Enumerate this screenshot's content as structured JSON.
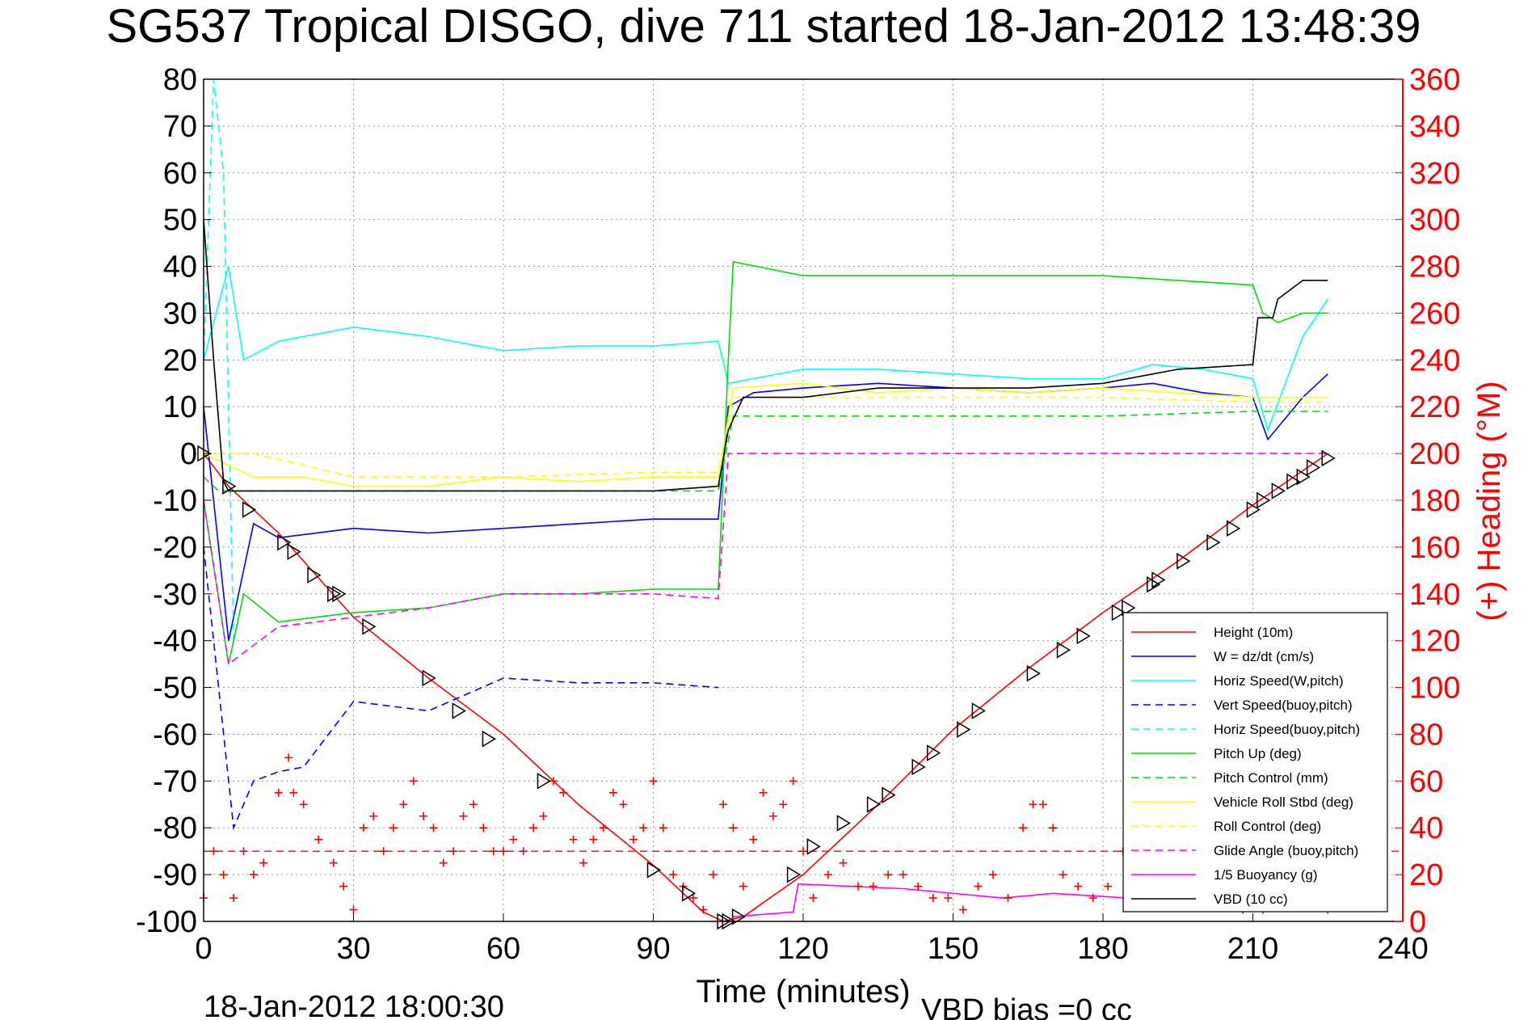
{
  "chart_data": {
    "type": "line",
    "title": "SG537 Tropical DISGO, dive 711 started 18-Jan-2012 13:48:39",
    "xlabel": "Time (minutes)",
    "ylabel": "",
    "y2label": "(+) Heading (°M)",
    "footer_left": "18-Jan-2012 18:00:30",
    "footer_right": "VBD bias =0 cc",
    "xlim": [
      0,
      240
    ],
    "ylim": [
      -100,
      80
    ],
    "y2lim": [
      0,
      360
    ],
    "xticks": [
      0,
      30,
      60,
      90,
      120,
      150,
      180,
      210,
      240
    ],
    "yticks": [
      80,
      70,
      60,
      50,
      40,
      30,
      20,
      10,
      0,
      -10,
      -20,
      -30,
      -40,
      -50,
      -60,
      -70,
      -80,
      -90,
      -100
    ],
    "y2ticks": [
      360,
      340,
      320,
      300,
      280,
      260,
      240,
      220,
      200,
      180,
      160,
      140,
      120,
      100,
      80,
      60,
      40,
      20,
      0
    ],
    "grid": true,
    "legend_position": "lower-right",
    "colors": {
      "height": "#ff0000",
      "w": "#0000ff",
      "horiz_speed": "#00ffff",
      "vert_speed_buoy": "#0000ff",
      "horiz_speed_buoy": "#00ffff",
      "pitch_up": "#00dd00",
      "pitch_control": "#00dd00",
      "roll": "#ffff00",
      "roll_control": "#ffff00",
      "glide_angle": "#ff00ff",
      "buoyancy": "#ff00ff",
      "vbd": "#000000",
      "heading": "#ff0000",
      "right_axis": "#ff0000"
    },
    "series": [
      {
        "name": "Height (10m)",
        "key": "height",
        "style": "solid",
        "x": [
          0,
          5,
          15,
          30,
          45,
          60,
          75,
          90,
          100,
          104,
          108,
          120,
          135,
          150,
          165,
          180,
          195,
          210,
          225
        ],
        "y": [
          0,
          -7,
          -17,
          -35,
          -48,
          -60,
          -75,
          -88,
          -98,
          -100,
          -99,
          -90,
          -75,
          -59,
          -46,
          -34,
          -23,
          -11,
          0
        ]
      },
      {
        "name": "W = dz/dt (cm/s)",
        "key": "w",
        "style": "solid",
        "x": [
          0,
          5,
          10,
          15,
          30,
          45,
          60,
          75,
          90,
          103,
          105,
          110,
          120,
          135,
          150,
          165,
          180,
          190,
          200,
          210,
          213,
          220,
          225
        ],
        "y": [
          10,
          -40,
          -15,
          -18,
          -16,
          -17,
          -16,
          -15,
          -14,
          -14,
          10,
          13,
          14,
          15,
          14,
          13,
          14,
          15,
          13,
          12,
          3,
          12,
          17
        ]
      },
      {
        "name": "Horiz Speed(W,pitch)",
        "key": "horiz_speed",
        "style": "solid",
        "x": [
          0,
          5,
          8,
          15,
          30,
          45,
          60,
          75,
          90,
          103,
          105,
          110,
          120,
          135,
          150,
          165,
          180,
          190,
          200,
          210,
          213,
          220,
          225
        ],
        "y": [
          20,
          40,
          20,
          24,
          27,
          25,
          22,
          23,
          23,
          24,
          15,
          16,
          18,
          18,
          17,
          16,
          16,
          19,
          18,
          16,
          5,
          25,
          33
        ]
      },
      {
        "name": "Vert Speed(buoy,pitch)",
        "key": "vert_speed_buoy",
        "style": "dashed",
        "x": [
          0,
          6,
          10,
          15,
          20,
          25,
          30,
          45,
          60,
          75,
          90,
          103
        ],
        "y": [
          -20,
          -80,
          -70,
          -68,
          -67,
          -60,
          -53,
          -55,
          -48,
          -49,
          -49,
          -50
        ]
      },
      {
        "name": "Horiz Speed(buoy,pitch)",
        "key": "horiz_speed_buoy",
        "style": "dashed",
        "x": [
          0,
          2,
          4,
          6
        ],
        "y": [
          20,
          80,
          60,
          -40
        ]
      },
      {
        "name": "Pitch Up (deg)",
        "key": "pitch_up",
        "style": "solid",
        "x": [
          0,
          5,
          8,
          15,
          30,
          45,
          60,
          75,
          90,
          103,
          105,
          106,
          120,
          135,
          150,
          165,
          180,
          195,
          210,
          212,
          215,
          220,
          225
        ],
        "y": [
          -10,
          -45,
          -30,
          -36,
          -34,
          -33,
          -30,
          -30,
          -29,
          -29,
          20,
          41,
          38,
          38,
          38,
          38,
          38,
          37,
          36,
          30,
          28,
          30,
          30
        ]
      },
      {
        "name": "Pitch Control (mm)",
        "key": "pitch_control",
        "style": "dashed",
        "x": [
          0,
          3,
          30,
          60,
          90,
          103,
          106,
          120,
          150,
          180,
          210,
          225
        ],
        "y": [
          -5,
          -8,
          -8,
          -8,
          -8,
          -8,
          8,
          8,
          8,
          8,
          9,
          9
        ]
      },
      {
        "name": "Vehicle Roll Stbd (deg)",
        "key": "roll",
        "style": "solid",
        "x": [
          0,
          10,
          20,
          30,
          45,
          60,
          75,
          90,
          103,
          106,
          120,
          135,
          150,
          165,
          180,
          195,
          210,
          225
        ],
        "y": [
          0,
          -5,
          -5,
          -7,
          -7,
          -5,
          -6,
          -5,
          -5,
          14,
          15,
          13,
          14,
          13,
          14,
          13,
          12,
          12
        ]
      },
      {
        "name": "Roll Control (deg)",
        "key": "roll_control",
        "style": "dashed",
        "x": [
          0,
          10,
          30,
          60,
          90,
          103,
          106,
          120,
          150,
          180,
          210,
          225
        ],
        "y": [
          0,
          0,
          -5,
          -5,
          -4,
          -4,
          12,
          12,
          12,
          12,
          11,
          11
        ]
      },
      {
        "name": "Glide Angle (buoy,pitch)",
        "key": "glide_angle",
        "style": "dashed",
        "x": [
          0,
          5,
          15,
          30,
          45,
          60,
          75,
          90,
          103,
          105,
          120,
          150,
          180,
          210,
          225
        ],
        "y": [
          -10,
          -45,
          -37,
          -35,
          -33,
          -30,
          -30,
          -30,
          -31,
          0,
          0,
          0,
          0,
          0,
          0
        ]
      },
      {
        "name": "1/5 Buoyancy (g)",
        "key": "buoyancy",
        "style": "solid",
        "x": [
          106,
          118,
          119,
          140,
          160,
          170,
          185,
          200,
          210,
          225
        ],
        "y": [
          -99,
          -98,
          -92,
          -93,
          -95,
          -94,
          -95,
          -95,
          -95,
          -95
        ]
      },
      {
        "name": "VBD (10 cc)",
        "key": "vbd",
        "style": "solid",
        "x": [
          0,
          2,
          4,
          5,
          30,
          60,
          90,
          103,
          105,
          108,
          120,
          135,
          150,
          165,
          180,
          190,
          195,
          210,
          211,
          214,
          215,
          220,
          225
        ],
        "y": [
          50,
          20,
          -6,
          -8,
          -8,
          -8,
          -8,
          -7,
          5,
          12,
          12,
          14,
          14,
          14,
          15,
          17,
          18,
          19,
          29,
          29,
          33,
          37,
          37
        ]
      }
    ],
    "heading_series": {
      "name": "Heading",
      "axis": "right",
      "marker": "+",
      "x": [
        0,
        2,
        4,
        6,
        8,
        10,
        12,
        15,
        17,
        18,
        20,
        23,
        26,
        28,
        30,
        32,
        34,
        36,
        38,
        40,
        42,
        44,
        46,
        48,
        50,
        52,
        54,
        56,
        58,
        60,
        62,
        64,
        66,
        68,
        70,
        72,
        74,
        76,
        78,
        80,
        82,
        84,
        86,
        88,
        90,
        92,
        94,
        96,
        98,
        100,
        102,
        104,
        106,
        108,
        110,
        112,
        114,
        116,
        118,
        120,
        122,
        125,
        128,
        131,
        134,
        137,
        140,
        143,
        146,
        149,
        152,
        155,
        158,
        161,
        164,
        166,
        168,
        170,
        172,
        175,
        178,
        181,
        184,
        187,
        190,
        193,
        196,
        199,
        202,
        205,
        208,
        210,
        212,
        214,
        216,
        218,
        220,
        222,
        225
      ],
      "y": [
        10,
        30,
        20,
        10,
        30,
        20,
        25,
        55,
        70,
        55,
        50,
        35,
        25,
        15,
        5,
        40,
        45,
        30,
        40,
        50,
        60,
        45,
        40,
        25,
        30,
        45,
        50,
        40,
        30,
        30,
        35,
        30,
        40,
        45,
        60,
        55,
        35,
        25,
        35,
        40,
        55,
        50,
        35,
        40,
        60,
        40,
        20,
        15,
        10,
        5,
        20,
        50,
        40,
        15,
        35,
        55,
        45,
        50,
        60,
        30,
        10,
        20,
        25,
        15,
        15,
        20,
        20,
        15,
        10,
        10,
        5,
        15,
        20,
        10,
        40,
        50,
        50,
        40,
        20,
        15,
        10,
        15,
        30,
        35,
        20,
        15,
        10,
        10,
        20,
        15,
        5,
        10,
        5,
        10,
        20,
        25,
        15,
        10,
        5
      ]
    },
    "heading_reference": {
      "value": 30,
      "axis": "right",
      "style": "dashed"
    },
    "waypoint_markers": {
      "marker": "triangle",
      "x": [
        0,
        5,
        9,
        16,
        18,
        22,
        26,
        27,
        33,
        45,
        51,
        57,
        68,
        90,
        97,
        104,
        105,
        107,
        118,
        122,
        128,
        134,
        137,
        143,
        146,
        152,
        155,
        166,
        172,
        176,
        183,
        185,
        190,
        191,
        196,
        202,
        206,
        210,
        212,
        215,
        218,
        220,
        222,
        225
      ],
      "y": [
        0,
        -7,
        -12,
        -19,
        -21,
        -26,
        -30,
        -30,
        -37,
        -48,
        -55,
        -61,
        -70,
        -89,
        -94,
        -100,
        -100,
        -99,
        -90,
        -84,
        -79,
        -75,
        -73,
        -67,
        -64,
        -59,
        -55,
        -47,
        -42,
        -39,
        -34,
        -33,
        -28,
        -27,
        -23,
        -19,
        -16,
        -12,
        -10,
        -8,
        -6,
        -5,
        -3,
        -1
      ]
    }
  },
  "legend": {
    "items": [
      {
        "label": "Height (10m)",
        "key": "height",
        "style": "solid"
      },
      {
        "label": "W = dz/dt (cm/s)",
        "key": "w",
        "style": "solid"
      },
      {
        "label": "Horiz Speed(W,pitch)",
        "key": "horiz_speed",
        "style": "solid"
      },
      {
        "label": "Vert Speed(buoy,pitch)",
        "key": "vert_speed_buoy",
        "style": "dashed"
      },
      {
        "label": "Horiz Speed(buoy,pitch)",
        "key": "horiz_speed_buoy",
        "style": "dashed"
      },
      {
        "label": "Pitch Up (deg)",
        "key": "pitch_up",
        "style": "solid"
      },
      {
        "label": "Pitch Control (mm)",
        "key": "pitch_control",
        "style": "dashed"
      },
      {
        "label": "Vehicle Roll Stbd (deg)",
        "key": "roll",
        "style": "solid"
      },
      {
        "label": "Roll Control (deg)",
        "key": "roll_control",
        "style": "dashed"
      },
      {
        "label": "Glide Angle (buoy,pitch)",
        "key": "glide_angle",
        "style": "dashed"
      },
      {
        "label": "1/5 Buoyancy (g)",
        "key": "buoyancy",
        "style": "solid"
      },
      {
        "label": "VBD (10 cc)",
        "key": "vbd",
        "style": "solid"
      }
    ]
  }
}
